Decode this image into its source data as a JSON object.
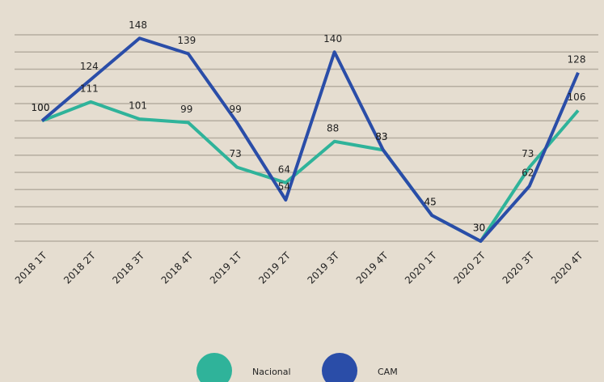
{
  "chart_data": {
    "type": "line",
    "categories": [
      "2018 1T",
      "2018 2T",
      "2018 3T",
      "2018 4T",
      "2019 1T",
      "2019 2T",
      "2019 3T",
      "2019 4T",
      "2020 1T",
      "2020 2T",
      "2020 3T",
      "2020 4T"
    ],
    "series": [
      {
        "name": "Nacional",
        "color": "#2fb39a",
        "values": [
          100,
          111,
          101,
          99,
          73,
          64,
          88,
          83,
          45,
          30,
          73,
          106
        ]
      },
      {
        "name": "CAM",
        "color": "#2a4da8",
        "values": [
          100,
          124,
          148,
          139,
          99,
          54,
          140,
          83,
          45,
          30,
          62,
          128
        ]
      }
    ],
    "ylim": [
      30,
      150
    ],
    "yticks": [
      30,
      40,
      50,
      60,
      70,
      80,
      90,
      100,
      110,
      120,
      130,
      140,
      150
    ],
    "grid": true,
    "legend": "bottom"
  }
}
